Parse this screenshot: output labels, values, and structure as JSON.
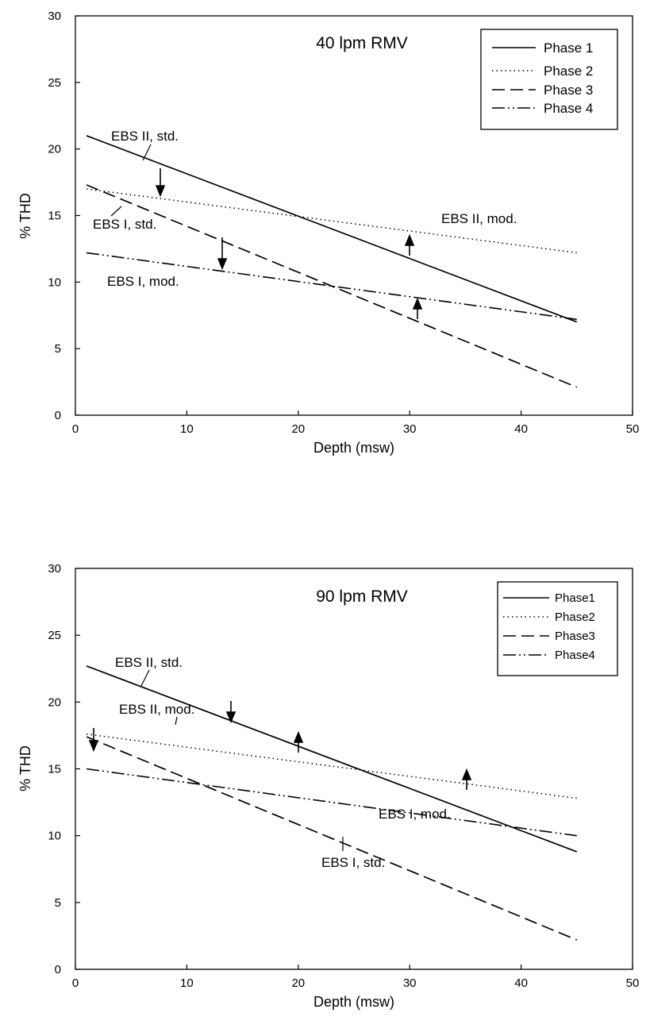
{
  "chart_data": [
    {
      "type": "line",
      "title": "40 lpm RMV",
      "xlabel": "Depth (msw)",
      "ylabel": "% THD",
      "xlim": [
        0,
        50
      ],
      "ylim": [
        0,
        30
      ],
      "xticks": [
        "0",
        "10",
        "20",
        "30",
        "40",
        "50"
      ],
      "yticks": [
        "0",
        "5",
        "10",
        "15",
        "20",
        "25",
        "30"
      ],
      "grid": false,
      "legend_position": "top-right",
      "series": [
        {
          "name": "Phase 1",
          "style": "solid",
          "x": [
            1,
            45
          ],
          "y": [
            21.0,
            7.0
          ]
        },
        {
          "name": "Phase 2",
          "style": "dotted",
          "x": [
            1,
            45
          ],
          "y": [
            17.0,
            12.2
          ]
        },
        {
          "name": "Phase 3",
          "style": "dashed",
          "x": [
            1,
            45
          ],
          "y": [
            17.3,
            2.1
          ]
        },
        {
          "name": "Phase 4",
          "style": "dashdot",
          "x": [
            1,
            45
          ],
          "y": [
            12.2,
            7.2
          ]
        }
      ],
      "annotations": [
        {
          "text": "EBS II, std."
        },
        {
          "text": "EBS I, std."
        },
        {
          "text": "EBS I, mod."
        },
        {
          "text": "EBS II, mod."
        }
      ]
    },
    {
      "type": "line",
      "title": "90 lpm RMV",
      "xlabel": "Depth (msw)",
      "ylabel": "% THD",
      "xlim": [
        0,
        50
      ],
      "ylim": [
        0,
        30
      ],
      "xticks": [
        "0",
        "10",
        "20",
        "30",
        "40",
        "50"
      ],
      "yticks": [
        "0",
        "5",
        "10",
        "15",
        "20",
        "25",
        "30"
      ],
      "grid": false,
      "legend_position": "top-right",
      "series": [
        {
          "name": "Phase1",
          "style": "solid",
          "x": [
            1,
            45
          ],
          "y": [
            22.7,
            8.8
          ]
        },
        {
          "name": "Phase2",
          "style": "dotted",
          "x": [
            1,
            45
          ],
          "y": [
            17.6,
            12.8
          ]
        },
        {
          "name": "Phase3",
          "style": "dashed",
          "x": [
            1,
            45
          ],
          "y": [
            17.4,
            2.2
          ]
        },
        {
          "name": "Phase4",
          "style": "dashdot",
          "x": [
            1,
            45
          ],
          "y": [
            15.0,
            10.0
          ]
        }
      ],
      "annotations": [
        {
          "text": "EBS II, std."
        },
        {
          "text": "EBS II, mod."
        },
        {
          "text": "EBS I, mod."
        },
        {
          "text": "EBS I, std."
        }
      ]
    }
  ]
}
